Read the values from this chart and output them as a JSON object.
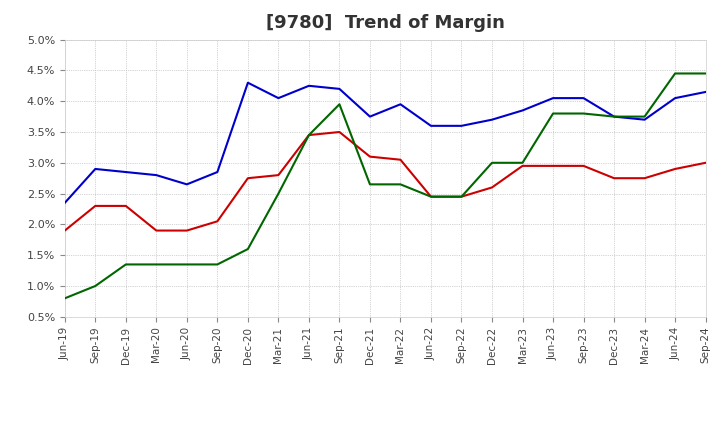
{
  "title": "[9780]  Trend of Margin",
  "title_fontsize": 13,
  "ylim": [
    0.5,
    5.0
  ],
  "yticks": [
    0.5,
    1.0,
    1.5,
    2.0,
    2.5,
    3.0,
    3.5,
    4.0,
    4.5,
    5.0
  ],
  "x_labels": [
    "Jun-19",
    "Sep-19",
    "Dec-19",
    "Mar-20",
    "Jun-20",
    "Sep-20",
    "Dec-20",
    "Mar-21",
    "Jun-21",
    "Sep-21",
    "Dec-21",
    "Mar-22",
    "Jun-22",
    "Sep-22",
    "Dec-22",
    "Mar-23",
    "Jun-23",
    "Sep-23",
    "Dec-23",
    "Mar-24",
    "Jun-24",
    "Sep-24"
  ],
  "ordinary_income": [
    2.35,
    2.9,
    2.85,
    2.8,
    2.65,
    2.85,
    4.3,
    4.05,
    4.25,
    4.2,
    3.75,
    3.95,
    3.6,
    3.6,
    3.7,
    3.85,
    4.05,
    4.05,
    3.75,
    3.7,
    4.05,
    4.15
  ],
  "net_income": [
    1.9,
    2.3,
    2.3,
    1.9,
    1.9,
    2.05,
    2.75,
    2.8,
    3.45,
    3.5,
    3.1,
    3.05,
    2.45,
    2.45,
    2.6,
    2.95,
    2.95,
    2.95,
    2.75,
    2.75,
    2.9,
    3.0
  ],
  "operating_cashflow": [
    0.8,
    1.0,
    1.35,
    1.35,
    1.35,
    1.35,
    1.6,
    2.5,
    3.45,
    3.95,
    2.65,
    2.65,
    2.45,
    2.45,
    3.0,
    3.0,
    3.8,
    3.8,
    3.75,
    3.75,
    4.45,
    4.45
  ],
  "ordinary_income_color": "#0000cc",
  "net_income_color": "#cc0000",
  "operating_cashflow_color": "#006600",
  "line_width": 1.5,
  "bg_color": "#ffffff",
  "plot_bg_color": "#ffffff",
  "grid_color": "#aaaaaa"
}
